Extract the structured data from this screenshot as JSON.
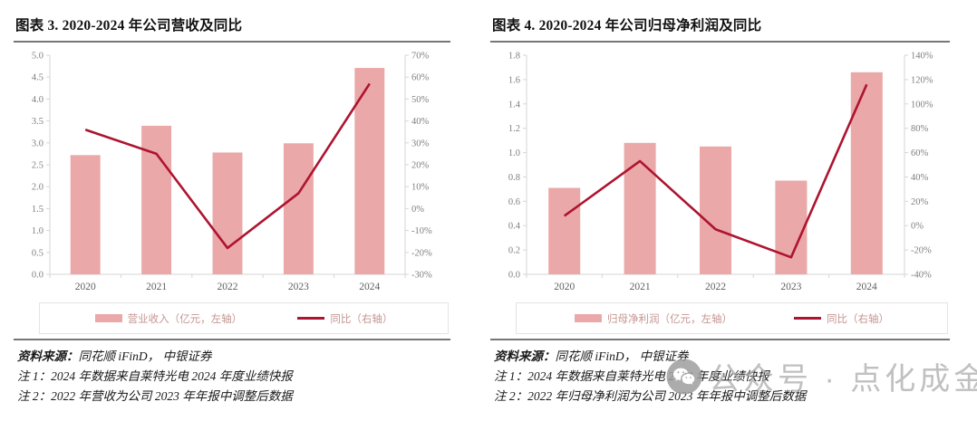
{
  "colors": {
    "bar_fill": "#EBA8A8",
    "line_stroke": "#AD142F",
    "legend_text": "#C49692",
    "axis_line": "#D6D6D6",
    "axis_label": "#7F7F7F",
    "x_label": "#5F5F5F",
    "rule": "#767676",
    "watermark": "#A8A8A8"
  },
  "panels": [
    {
      "title": "图表 3. 2020-2024 年公司营收及同比",
      "source_label": "资料来源：",
      "source": "同花顺 iFinD，  中银证券",
      "note1": "注 1：2024 年数据来自莱特光电 2024 年度业绩快报",
      "note2": "注 2：2022 年营收为公司 2023 年年报中调整后数据"
    },
    {
      "title": "图表 4. 2020-2024 年公司归母净利润及同比",
      "source_label": "资料来源：",
      "source": "同花顺 iFinD，  中银证券",
      "note1": "注 1：2024 年数据来自莱特光电 2024 年度业绩快报",
      "note2": "注 2：2022 年归母净利润为公司 2023 年年报中调整后数据"
    }
  ],
  "chart_data": [
    {
      "type": "bar+line",
      "title": "图表 3. 2020-2024 年公司营收及同比",
      "categories": [
        "2020",
        "2021",
        "2022",
        "2023",
        "2024"
      ],
      "series": [
        {
          "name": "营业收入（亿元，左轴）",
          "type": "bar",
          "axis": "left",
          "values": [
            2.72,
            3.39,
            2.78,
            2.99,
            4.71
          ],
          "color": "#EBA8A8"
        },
        {
          "name": "同比（右轴）",
          "type": "line",
          "axis": "right",
          "values": [
            36,
            25,
            -18,
            7,
            57
          ],
          "color": "#AD142F"
        }
      ],
      "left_axis": {
        "min": 0,
        "max": 5,
        "step": 0.5,
        "format": "number1"
      },
      "right_axis": {
        "min": -30,
        "max": 70,
        "step": 10,
        "format": "percent"
      },
      "grid": false,
      "legend_position": "bottom"
    },
    {
      "type": "bar+line",
      "title": "图表 4. 2020-2024 年公司归母净利润及同比",
      "categories": [
        "2020",
        "2021",
        "2022",
        "2023",
        "2024"
      ],
      "series": [
        {
          "name": "归母净利润（亿元，左轴）",
          "type": "bar",
          "axis": "left",
          "values": [
            0.71,
            1.08,
            1.05,
            0.77,
            1.66
          ],
          "color": "#EBA8A8"
        },
        {
          "name": "同比（右轴）",
          "type": "line",
          "axis": "right",
          "values": [
            8,
            53,
            -3,
            -26,
            116
          ],
          "color": "#AD142F"
        }
      ],
      "left_axis": {
        "min": 0,
        "max": 1.8,
        "step": 0.2,
        "format": "number1"
      },
      "right_axis": {
        "min": -40,
        "max": 140,
        "step": 20,
        "format": "percent"
      },
      "grid": false,
      "legend_position": "bottom"
    }
  ],
  "watermark": {
    "icon": "wechat-icon",
    "text": "公众号 · 点化成金"
  }
}
